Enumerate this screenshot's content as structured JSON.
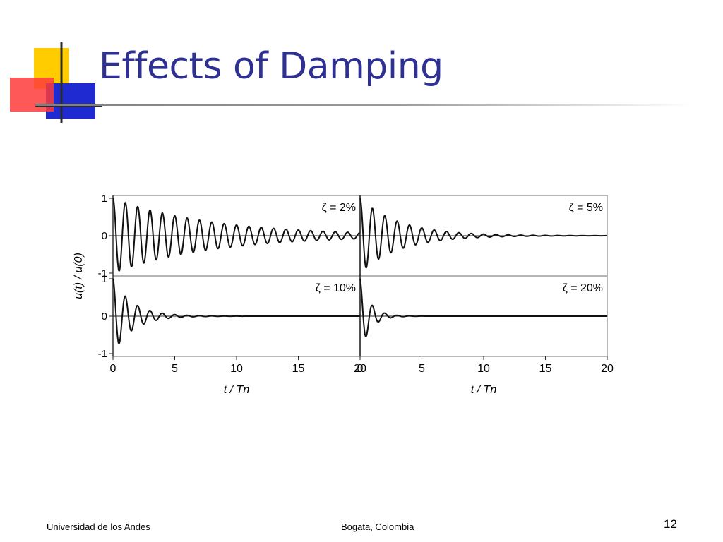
{
  "slide": {
    "title": "Effects of Damping",
    "page_number": "12"
  },
  "footer": {
    "left_text": "Universidad de los Andes",
    "center_text": "Bogata, Colombia"
  },
  "logo": {
    "colors": {
      "yellow": "#ffcc00",
      "red": "#ff3b3b",
      "blue": "#1f2bd1",
      "line": "#2b2b2b"
    }
  },
  "colors": {
    "title": "#2e3192",
    "curve": "#111111",
    "axis": "#222222"
  },
  "chart_data": {
    "type": "line",
    "ylabel": "u(t) / u(0)",
    "xlabel": "t / Tn",
    "xlim": [
      0,
      20
    ],
    "ylim": [
      -1,
      1
    ],
    "xticks": [
      0,
      5,
      10,
      15,
      20
    ],
    "panels": [
      {
        "label": "ζ = 2%",
        "zeta": 0.02,
        "yticks": [
          1,
          0,
          -1
        ],
        "ytick_labels": [
          "1",
          "0",
          "-1"
        ]
      },
      {
        "label": "ζ = 5%",
        "zeta": 0.05,
        "yticks": [],
        "ytick_labels": []
      },
      {
        "label": "ζ = 10%",
        "zeta": 0.1,
        "yticks": [
          1,
          0,
          -1
        ],
        "ytick_labels": [
          "1",
          "0",
          "-1"
        ]
      },
      {
        "label": "ζ = 20%",
        "zeta": 0.2,
        "yticks": [],
        "ytick_labels": []
      }
    ],
    "series_function": "u(t)/u(0) = exp(-2·π·ζ·t/Tn) · cos(2·π·t/Tn)"
  }
}
